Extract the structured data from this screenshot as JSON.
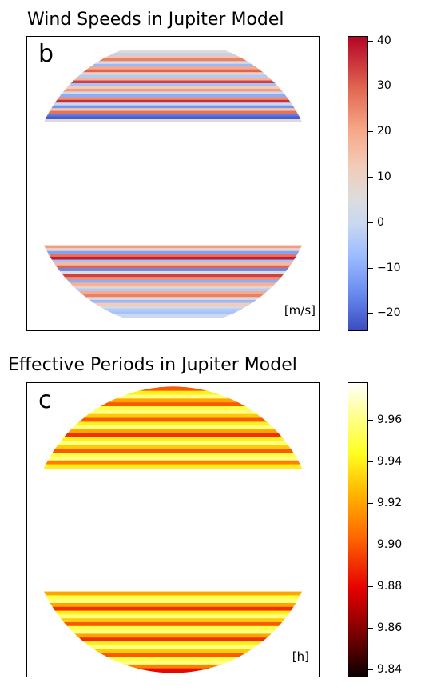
{
  "chart_data": [
    {
      "type": "heatmap",
      "panel_label": "b",
      "title": "Wind Speeds in Jupiter Model",
      "unit_label": "[m/s]",
      "colormap": "coolwarm",
      "colorbar": {
        "range": [
          -24,
          41
        ],
        "ticks": [
          40,
          30,
          20,
          10,
          0,
          -10,
          -20
        ],
        "tick_labels": [
          "40",
          "30",
          "20",
          "10",
          "0",
          "−10",
          "−20"
        ]
      },
      "band_values_north": [
        6,
        -2,
        14,
        26,
        4,
        -8,
        20,
        30,
        10,
        -4,
        18,
        34,
        -6,
        12,
        22,
        2,
        -10,
        24,
        36,
        0,
        -14,
        14,
        28,
        -18,
        -22,
        6
      ],
      "band_values_south": [
        22,
        8,
        -12,
        28,
        38,
        -6,
        16,
        30,
        -16,
        4,
        34,
        24,
        -10,
        18,
        8,
        -4,
        20,
        26,
        6,
        -8,
        12,
        2,
        -4,
        -6,
        0
      ],
      "north_cap_limits": [
        0.045,
        0.29
      ],
      "south_cap_limits": [
        0.71,
        0.955
      ],
      "grid": false
    },
    {
      "type": "heatmap",
      "panel_label": "c",
      "title": "Effective Periods in Jupiter Model",
      "unit_label": "[h]",
      "colormap": "hot",
      "colorbar": {
        "range": [
          9.836,
          9.978
        ],
        "ticks": [
          9.96,
          9.94,
          9.92,
          9.9,
          9.88,
          9.86,
          9.84
        ],
        "tick_labels": [
          "9.96",
          "9.94",
          "9.92",
          "9.90",
          "9.88",
          "9.86",
          "9.84"
        ]
      },
      "band_values_north": [
        9.86,
        9.9,
        9.94,
        9.96,
        9.92,
        9.9,
        9.95,
        9.96,
        9.93,
        9.9,
        9.94,
        9.96,
        9.92,
        9.89,
        9.94,
        9.96,
        9.93,
        9.9,
        9.95,
        9.96,
        9.91,
        9.94
      ],
      "band_values_south": [
        9.92,
        9.95,
        9.96,
        9.92,
        9.89,
        9.94,
        9.96,
        9.93,
        9.9,
        9.95,
        9.96,
        9.92,
        9.89,
        9.94,
        9.96,
        9.93,
        9.9,
        9.95,
        9.96,
        9.91,
        9.88
      ],
      "north_cap_limits": [
        0.0,
        0.29
      ],
      "south_cap_limits": [
        0.71,
        0.985
      ],
      "grid": false
    }
  ]
}
